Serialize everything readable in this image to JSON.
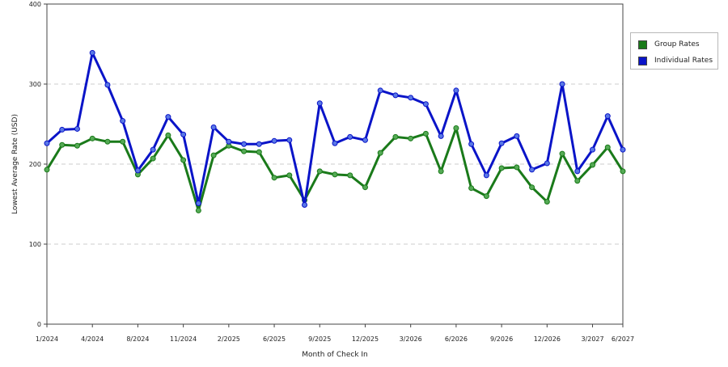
{
  "colors": {
    "group": "#1a7a1a",
    "individual": "#0a14c8",
    "marker_group": "#55aa55",
    "marker_individual": "#5a78e6",
    "grid": "#cccccc"
  },
  "chart_data": {
    "type": "line",
    "title": "",
    "xlabel": "Month of Check In",
    "ylabel": "Lowest Average Rate (USD)",
    "ylim": [
      0,
      400
    ],
    "yticks": [
      "0",
      "100",
      "200",
      "300",
      "400"
    ],
    "grid": "horizontal dashed",
    "legend_position": "right",
    "x_ticks": [
      {
        "i": 0,
        "label": "1/2024"
      },
      {
        "i": 3,
        "label": "4/2024"
      },
      {
        "i": 6,
        "label": "8/2024"
      },
      {
        "i": 9,
        "label": "11/2024"
      },
      {
        "i": 12,
        "label": "2/2025"
      },
      {
        "i": 15,
        "label": "6/2025"
      },
      {
        "i": 18,
        "label": "9/2025"
      },
      {
        "i": 21,
        "label": "12/2025"
      },
      {
        "i": 24,
        "label": "3/2026"
      },
      {
        "i": 27,
        "label": "6/2026"
      },
      {
        "i": 30,
        "label": "9/2026"
      },
      {
        "i": 33,
        "label": "12/2026"
      },
      {
        "i": 36,
        "label": "3/2027"
      },
      {
        "i": 38,
        "label": "6/2027"
      }
    ],
    "series": [
      {
        "name": "Group Rates",
        "color_key": "group",
        "values": [
          193,
          224,
          223,
          232,
          228,
          228,
          187,
          207,
          236,
          205,
          142,
          211,
          223,
          216,
          215,
          183,
          186,
          155,
          191,
          187,
          186,
          171,
          214,
          234,
          232,
          238,
          191,
          245,
          170,
          160,
          195,
          196,
          171,
          153,
          213,
          179,
          199,
          221,
          191
        ]
      },
      {
        "name": "Individual Rates",
        "color_key": "individual",
        "values": [
          226,
          243,
          244,
          339,
          299,
          254,
          192,
          218,
          259,
          237,
          151,
          246,
          228,
          225,
          225,
          229,
          230,
          149,
          276,
          226,
          234,
          230,
          292,
          286,
          283,
          275,
          235,
          292,
          225,
          186,
          226,
          235,
          193,
          201,
          300,
          191,
          218,
          260,
          218
        ]
      }
    ]
  }
}
